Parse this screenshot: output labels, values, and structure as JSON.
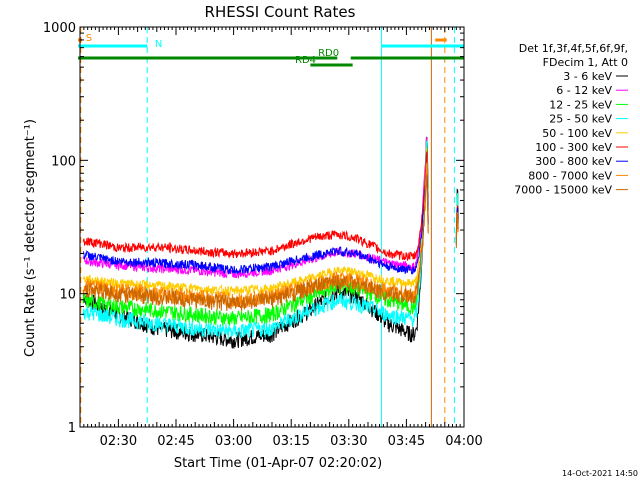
{
  "chart_data": {
    "type": "line",
    "title": "RHESSI Count Rates",
    "xlabel": "Start Time (01-Apr-07 02:20:02)",
    "ylabel": "Count Rate (s⁻¹ detector segment⁻¹)",
    "ylog": true,
    "ylim": [
      1,
      1000
    ],
    "xlim_minutes": [
      0,
      100
    ],
    "yticks": [
      "1",
      "10",
      "100",
      "1000"
    ],
    "xticks": [
      {
        "label": "02:30",
        "t": 10
      },
      {
        "label": "02:45",
        "t": 25
      },
      {
        "label": "03:00",
        "t": 40
      },
      {
        "label": "03:15",
        "t": 55
      },
      {
        "label": "03:30",
        "t": 70
      },
      {
        "label": "03:45",
        "t": 85
      },
      {
        "label": "04:00",
        "t": 100
      }
    ],
    "legend": {
      "placement": "right",
      "header": [
        "Det 1f,3f,4f,5f,6f,9f,",
        "FDecim 1, Att 0"
      ]
    },
    "series": [
      {
        "name": "3 - 6 keV",
        "color": "#000000",
        "profile": [
          [
            0,
            10
          ],
          [
            5,
            8
          ],
          [
            10,
            7
          ],
          [
            20,
            5.5
          ],
          [
            30,
            5
          ],
          [
            40,
            4.5
          ],
          [
            50,
            5
          ],
          [
            60,
            7.5
          ],
          [
            67,
            10.5
          ],
          [
            72,
            9.5
          ],
          [
            80,
            6
          ],
          [
            86,
            5
          ]
        ]
      },
      {
        "name": "6 - 12 keV",
        "color": "#ff00ff",
        "profile": [
          [
            0,
            18
          ],
          [
            5,
            17
          ],
          [
            10,
            16.5
          ],
          [
            20,
            15.5
          ],
          [
            30,
            15
          ],
          [
            40,
            14
          ],
          [
            50,
            15
          ],
          [
            60,
            18
          ],
          [
            67,
            20.5
          ],
          [
            72,
            20
          ],
          [
            80,
            17
          ],
          [
            86,
            16
          ]
        ]
      },
      {
        "name": "12 - 25 keV",
        "color": "#00ff00",
        "profile": [
          [
            0,
            9
          ],
          [
            5,
            8.5
          ],
          [
            10,
            8
          ],
          [
            20,
            7.5
          ],
          [
            30,
            7
          ],
          [
            40,
            6.5
          ],
          [
            50,
            7
          ],
          [
            60,
            9.5
          ],
          [
            67,
            11.5
          ],
          [
            72,
            11
          ],
          [
            80,
            9
          ],
          [
            86,
            8
          ]
        ]
      },
      {
        "name": "25 - 50 keV",
        "color": "#00ffff",
        "profile": [
          [
            0,
            7.5
          ],
          [
            5,
            7
          ],
          [
            10,
            6.5
          ],
          [
            20,
            6
          ],
          [
            30,
            5.5
          ],
          [
            40,
            5.2
          ],
          [
            50,
            5.5
          ],
          [
            60,
            7.5
          ],
          [
            67,
            9
          ],
          [
            72,
            8.5
          ],
          [
            80,
            7
          ],
          [
            86,
            6.5
          ]
        ]
      },
      {
        "name": "50 - 100 keV",
        "color": "#ffcc00",
        "profile": [
          [
            0,
            13
          ],
          [
            5,
            12.5
          ],
          [
            10,
            12
          ],
          [
            20,
            11.5
          ],
          [
            30,
            11
          ],
          [
            40,
            10.5
          ],
          [
            50,
            11
          ],
          [
            60,
            13
          ],
          [
            67,
            15
          ],
          [
            72,
            14.5
          ],
          [
            80,
            12.5
          ],
          [
            86,
            12
          ]
        ]
      },
      {
        "name": "100 - 300 keV",
        "color": "#ff0000",
        "profile": [
          [
            0,
            25
          ],
          [
            5,
            24
          ],
          [
            10,
            22
          ],
          [
            20,
            22.5
          ],
          [
            30,
            21
          ],
          [
            40,
            20
          ],
          [
            50,
            21
          ],
          [
            60,
            26
          ],
          [
            67,
            28
          ],
          [
            72,
            26
          ],
          [
            80,
            20
          ],
          [
            86,
            19
          ]
        ]
      },
      {
        "name": "300 - 800 keV",
        "color": "#0000ff",
        "profile": [
          [
            0,
            20
          ],
          [
            5,
            18.5
          ],
          [
            10,
            17.5
          ],
          [
            20,
            17
          ],
          [
            30,
            16.5
          ],
          [
            40,
            15
          ],
          [
            50,
            16
          ],
          [
            60,
            19
          ],
          [
            67,
            21
          ],
          [
            72,
            20
          ],
          [
            80,
            16
          ],
          [
            86,
            15
          ]
        ]
      },
      {
        "name": "800 - 7000 keV",
        "color": "#ff8800",
        "profile": [
          [
            0,
            11.5
          ],
          [
            5,
            11
          ],
          [
            10,
            10.5
          ],
          [
            20,
            10
          ],
          [
            30,
            9.5
          ],
          [
            40,
            9
          ],
          [
            50,
            9.5
          ],
          [
            60,
            11.5
          ],
          [
            67,
            13
          ],
          [
            72,
            12.5
          ],
          [
            80,
            10.5
          ],
          [
            86,
            10
          ]
        ]
      },
      {
        "name": "7000 - 15000 keV",
        "color": "#cc6600",
        "profile": [
          [
            0,
            11
          ],
          [
            5,
            10.5
          ],
          [
            10,
            10
          ],
          [
            20,
            9.5
          ],
          [
            30,
            9
          ],
          [
            40,
            8.5
          ],
          [
            50,
            9
          ],
          [
            60,
            11
          ],
          [
            67,
            12.5
          ],
          [
            72,
            12
          ],
          [
            80,
            10
          ],
          [
            86,
            9.5
          ]
        ]
      }
    ],
    "flare_peak": {
      "t_start": 89.5,
      "t_peak": 90.3,
      "t_end": 90.7,
      "peak_rate": 170
    },
    "late_spike": {
      "t_start": 98,
      "t_peak": 98.3,
      "t_end": 98.5,
      "peak_rate": 65
    },
    "annotations": {
      "vertical_lines": [
        {
          "t": -0.8,
          "color": "#00ffff",
          "style": "solid"
        },
        {
          "t": 0.2,
          "color": "#ff8800",
          "style": "dashed"
        },
        {
          "t": 17.5,
          "color": "#00ffff",
          "style": "dashed"
        },
        {
          "t": 78.5,
          "color": "#00ffff",
          "style": "solid"
        },
        {
          "t": 91.5,
          "color": "#cc6600",
          "style": "solid"
        },
        {
          "t": 95,
          "color": "#ff8800",
          "style": "dashed"
        },
        {
          "t": 97.5,
          "color": "#00ffff",
          "style": "dashed"
        }
      ],
      "bars": [
        {
          "label": "S",
          "color": "#ff8800",
          "t0": -0.5,
          "t1": 0.5,
          "level": 40,
          "label_t": 1.5
        },
        {
          "label": "N",
          "color": "#00ffff",
          "t0": -0.5,
          "t1": 17.5,
          "level": 46,
          "label_t": 19.5
        },
        {
          "label": "",
          "color": "#00ffff",
          "t0": 78.5,
          "t1": 100,
          "level": 46,
          "label_t": 0
        },
        {
          "label": "",
          "color": "#ff8800",
          "t0": 92.5,
          "t1": 95.5,
          "level": 40,
          "label_t": 0
        },
        {
          "label": "RD0",
          "color": "#008800",
          "t0": -0.5,
          "t1": 67,
          "level": 58,
          "label_t": 62
        },
        {
          "label": "",
          "color": "#008800",
          "t0": 70.5,
          "t1": 100,
          "level": 58,
          "label_t": 0
        },
        {
          "label": "RD4",
          "color": "#008800",
          "t0": 60,
          "t1": 71,
          "level": 65,
          "label_t": 56
        }
      ]
    }
  },
  "timestamp": "14-Oct-2021 14:50"
}
